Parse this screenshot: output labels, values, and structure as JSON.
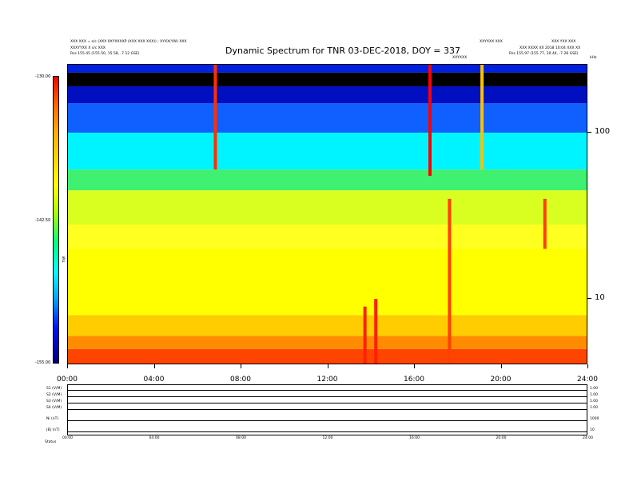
{
  "header": {
    "left_line1": "XXX XXX = s/c (XXX 0XYXXXXP (XXX XXX XXX)) ; XYXX(YW) XXX",
    "left_line2": "XXXYYXX X s/c XXX",
    "left_line3": "Rss      155.45 (155.50, 15.58, -7.12 GSE)",
    "right_line1": "XXYXXX XXX",
    "right_line2": "XXX YXX XXX",
    "right_line3": "XXX XXXX XX 2018 10:04 XXX XX",
    "right_line4": "Rss      155.97 (155.77, 20.44, -7.28 GSE)",
    "center_small": "XXYXXX"
  },
  "title": "Dynamic Spectrum for TNR 03-DEC-2018, DOY = 337",
  "colorbar": {
    "top_label": "-130.00",
    "mid_label": "-142.50",
    "bottom_label": "-155.00",
    "unit_label": "TNR"
  },
  "corner_label": "kHz",
  "chart_data": {
    "type": "heatmap",
    "title": "Dynamic Spectrum for TNR 03-DEC-2018, DOY = 337",
    "xlabel": "",
    "ylabel": "",
    "x_tick_labels": [
      "00:00",
      "04:00",
      "08:00",
      "12:00",
      "16:00",
      "20:00",
      "24:00"
    ],
    "x_range_hours": [
      0,
      24
    ],
    "y_scale": "log",
    "y_tick_labels": [
      "10",
      "100"
    ],
    "y_range_khz": [
      4,
      256
    ],
    "color_range": [
      -155.0,
      -130.0
    ],
    "bands_khz": [
      {
        "f_low": 4,
        "f_high": 5,
        "color": "#ff4400"
      },
      {
        "f_low": 5,
        "f_high": 6,
        "color": "#ff8c00"
      },
      {
        "f_low": 6,
        "f_high": 8,
        "color": "#ffcc00"
      },
      {
        "f_low": 8,
        "f_high": 20,
        "color": "#ffff00"
      },
      {
        "f_low": 20,
        "f_high": 28,
        "color": "#ffff20"
      },
      {
        "f_low": 28,
        "f_high": 45,
        "color": "#d8ff20"
      },
      {
        "f_low": 45,
        "f_high": 60,
        "color": "#40f070"
      },
      {
        "f_low": 60,
        "f_high": 100,
        "color": "#00f4ff"
      },
      {
        "f_low": 100,
        "f_high": 150,
        "color": "#1060ff"
      },
      {
        "f_low": 150,
        "f_high": 190,
        "color": "#0010c0"
      },
      {
        "f_low": 190,
        "f_high": 230,
        "color": "#000000"
      },
      {
        "f_low": 230,
        "f_high": 256,
        "color": "#0020e0"
      }
    ],
    "bursts": [
      {
        "time_h": 6.8,
        "f_low": 60,
        "f_high": 256,
        "color": "#ff3000"
      },
      {
        "time_h": 13.7,
        "f_low": 4,
        "f_high": 9,
        "color": "#ff2000"
      },
      {
        "time_h": 14.2,
        "f_low": 4,
        "f_high": 10,
        "color": "#ff2000"
      },
      {
        "time_h": 16.7,
        "f_low": 55,
        "f_high": 256,
        "color": "#ff0000"
      },
      {
        "time_h": 17.6,
        "f_low": 4,
        "f_high": 40,
        "color": "#ff4000"
      },
      {
        "time_h": 19.1,
        "f_low": 60,
        "f_high": 256,
        "color": "#ffc000"
      },
      {
        "time_h": 22.0,
        "f_low": 20,
        "f_high": 40,
        "color": "#ff4000"
      }
    ]
  },
  "housekeeping": {
    "rows": [
      {
        "label": "S1 (V/M)",
        "right": "1.00"
      },
      {
        "label": "S2 (V/M)",
        "right": "1.00"
      },
      {
        "label": "S3 (V/M)",
        "right": "1.00"
      },
      {
        "label": "S4 (V/M)",
        "right": "1.00"
      },
      {
        "label": "Ni (nT)",
        "right": "1000"
      },
      {
        "label": "|B| (nT)",
        "right": "10"
      }
    ],
    "x_tick_labels": [
      "00:00",
      "04:00",
      "08:00",
      "12:00",
      "16:00",
      "20:00",
      "24:00"
    ],
    "status_label": "Status"
  }
}
